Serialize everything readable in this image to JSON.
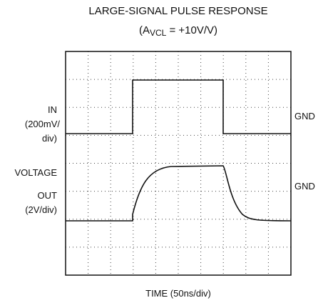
{
  "chart_data": {
    "type": "oscilloscope",
    "title": "LARGE-SIGNAL PULSE RESPONSE",
    "subtitle": {
      "prefix": "(A",
      "subscript": "VCL",
      "suffix": " = +10V/V)"
    },
    "x_label": "TIME (50ns/div)",
    "in_label": [
      "IN",
      "(200mV/",
      "div)"
    ],
    "out_label": [
      "VOLTAGE",
      "OUT",
      "(2V/div)"
    ],
    "gnd_labels": [
      "GND",
      "GND"
    ]
  }
}
